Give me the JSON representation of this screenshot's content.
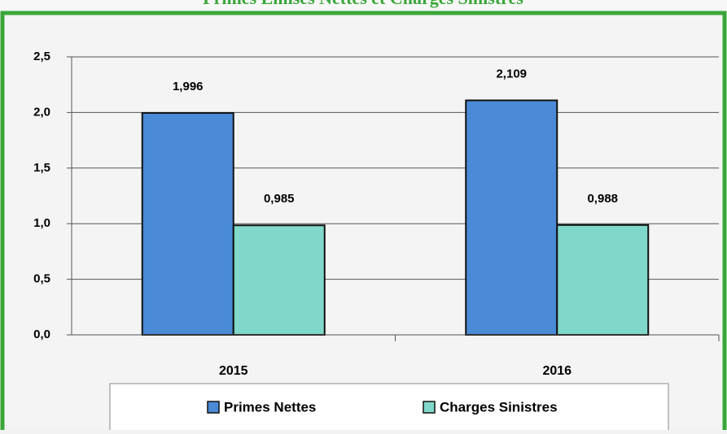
{
  "chart_data": {
    "type": "bar",
    "title": "Primes Emises Nettes et Charges Sinistres",
    "categories": [
      "2015",
      "2016"
    ],
    "series": [
      {
        "name": "Primes Nettes",
        "color": "#4a8ad6",
        "values": [
          1.996,
          2.109
        ],
        "value_labels": [
          "1,996",
          "2,109"
        ]
      },
      {
        "name": "Charges Sinistres",
        "color": "#80d8ca",
        "values": [
          0.985,
          0.988
        ],
        "value_labels": [
          "0,985",
          "0,988"
        ]
      }
    ],
    "ylim": [
      0,
      2.5
    ],
    "yticks": [
      {
        "value": 0,
        "label": "0,0"
      },
      {
        "value": 0.5,
        "label": "0,5"
      },
      {
        "value": 1,
        "label": "1,0"
      },
      {
        "value": 1.5,
        "label": "1,5"
      },
      {
        "value": 2,
        "label": "2,0"
      },
      {
        "value": 2.5,
        "label": "2,5"
      }
    ],
    "grid": true,
    "legend": "bottom"
  }
}
